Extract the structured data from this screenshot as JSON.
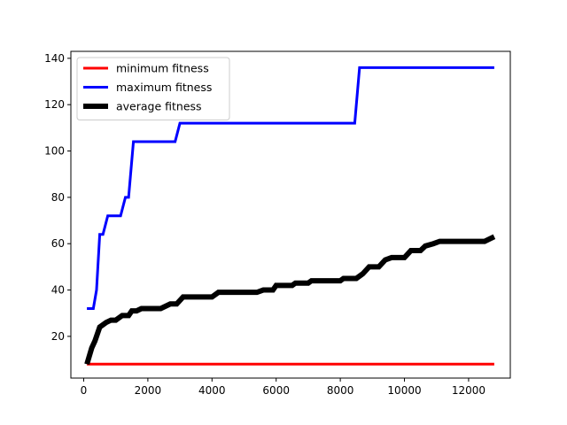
{
  "chart_data": {
    "type": "line",
    "title": "",
    "xlabel": "",
    "ylabel": "",
    "xlim": [
      -400,
      13300
    ],
    "ylim": [
      2,
      143
    ],
    "x_ticks": [
      0,
      2000,
      4000,
      6000,
      8000,
      10000,
      12000
    ],
    "y_ticks": [
      20,
      40,
      60,
      80,
      100,
      120,
      140
    ],
    "grid": false,
    "legend_position": "top-left",
    "series": [
      {
        "name": "minimum fitness",
        "color": "#ff0000",
        "line_width": 3,
        "points": [
          [
            100,
            8
          ],
          [
            12800,
            8
          ]
        ]
      },
      {
        "name": "maximum fitness",
        "color": "#0000ff",
        "line_width": 3,
        "points": [
          [
            100,
            32
          ],
          [
            300,
            32
          ],
          [
            400,
            40
          ],
          [
            500,
            64
          ],
          [
            600,
            64
          ],
          [
            750,
            72
          ],
          [
            1150,
            72
          ],
          [
            1300,
            80
          ],
          [
            1400,
            80
          ],
          [
            1550,
            104
          ],
          [
            2850,
            104
          ],
          [
            3000,
            112
          ],
          [
            8450,
            112
          ],
          [
            8600,
            136
          ],
          [
            12800,
            136
          ]
        ]
      },
      {
        "name": "average fitness",
        "color": "#000000",
        "line_width": 6,
        "points": [
          [
            100,
            8
          ],
          [
            250,
            15
          ],
          [
            350,
            18
          ],
          [
            500,
            24
          ],
          [
            700,
            26
          ],
          [
            850,
            27
          ],
          [
            1000,
            27
          ],
          [
            1200,
            29
          ],
          [
            1400,
            29
          ],
          [
            1500,
            31
          ],
          [
            1650,
            31
          ],
          [
            1800,
            32
          ],
          [
            2400,
            32
          ],
          [
            2700,
            34
          ],
          [
            2900,
            34
          ],
          [
            3100,
            37
          ],
          [
            4000,
            37
          ],
          [
            4200,
            39
          ],
          [
            5400,
            39
          ],
          [
            5600,
            40
          ],
          [
            5900,
            40
          ],
          [
            6000,
            42
          ],
          [
            6500,
            42
          ],
          [
            6600,
            43
          ],
          [
            7000,
            43
          ],
          [
            7100,
            44
          ],
          [
            8000,
            44
          ],
          [
            8100,
            45
          ],
          [
            8500,
            45
          ],
          [
            8700,
            47
          ],
          [
            8900,
            50
          ],
          [
            9200,
            50
          ],
          [
            9400,
            53
          ],
          [
            9600,
            54
          ],
          [
            10000,
            54
          ],
          [
            10200,
            57
          ],
          [
            10500,
            57
          ],
          [
            10650,
            59
          ],
          [
            10900,
            60
          ],
          [
            11100,
            61
          ],
          [
            12000,
            61
          ],
          [
            12500,
            61
          ],
          [
            12650,
            62
          ],
          [
            12800,
            63
          ]
        ]
      }
    ]
  }
}
